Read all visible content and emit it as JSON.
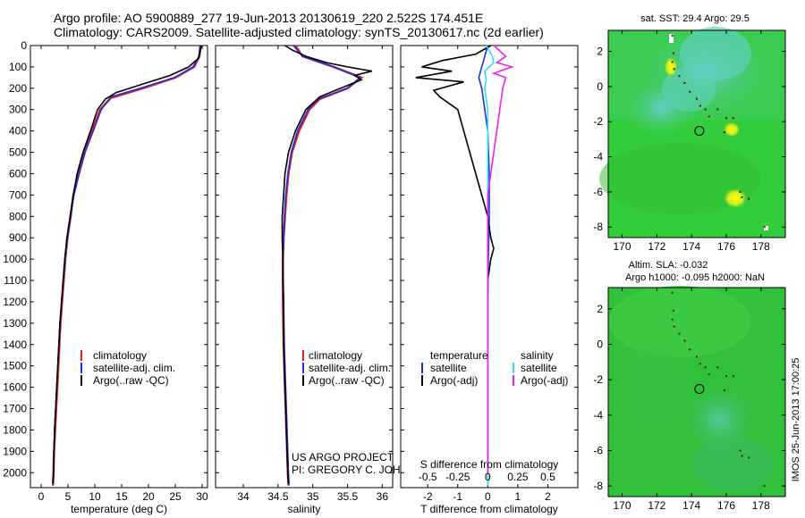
{
  "header": {
    "line1": "Argo profile: AO 5900889_277 19-Jun-2013 20130619_220 2.522S 174.451E",
    "line2": "Climatology: CARS2009. Satellite-adjusted climatology: synTS_20130617.nc (2d earlier)"
  },
  "colors": {
    "climatology": "#e02020",
    "satellite": "#2030e0",
    "argo": "#000000",
    "sat_salinity": "#30e0f0",
    "argo_salinity": "#ee22ee",
    "map_green": "#33cc33",
    "map_cyan": "#55cccc"
  },
  "depth_axis": {
    "ticks": [
      "0",
      "100",
      "200",
      "300",
      "400",
      "500",
      "600",
      "700",
      "800",
      "900",
      "1000",
      "1100",
      "1200",
      "1300",
      "1400",
      "1500",
      "1600",
      "1700",
      "1800",
      "1900",
      "2000"
    ],
    "ylim": [
      0,
      2070
    ]
  },
  "chart_data": [
    {
      "type": "line",
      "xlabel": "temperature (deg C)",
      "xticks": [
        "0",
        "5",
        "10",
        "15",
        "20",
        "25",
        "30"
      ],
      "xlim": [
        -2,
        31
      ],
      "legend": [
        "climatology",
        "satellite-adj. clim.",
        "Argo(..raw -QC)"
      ],
      "series": [
        {
          "name": "climatology",
          "color": "climatology",
          "points": [
            [
              29.7,
              0
            ],
            [
              29.5,
              50
            ],
            [
              28.5,
              100
            ],
            [
              25,
              150
            ],
            [
              19,
              200
            ],
            [
              13,
              245
            ],
            [
              11,
              300
            ],
            [
              9.5,
              400
            ],
            [
              8,
              500
            ],
            [
              7,
              600
            ],
            [
              6,
              700
            ],
            [
              5.5,
              800
            ],
            [
              4.9,
              900
            ],
            [
              4.5,
              1000
            ],
            [
              4.2,
              1100
            ],
            [
              3.9,
              1200
            ],
            [
              3.6,
              1300
            ],
            [
              3.4,
              1400
            ],
            [
              3.2,
              1500
            ],
            [
              3,
              1600
            ],
            [
              2.8,
              1700
            ],
            [
              2.6,
              1800
            ],
            [
              2.4,
              1900
            ],
            [
              2.3,
              2000
            ],
            [
              2.2,
              2060
            ]
          ]
        },
        {
          "name": "satellite-adj. clim.",
          "color": "satellite",
          "points": [
            [
              29.6,
              0
            ],
            [
              29.4,
              50
            ],
            [
              28.3,
              100
            ],
            [
              24.8,
              150
            ],
            [
              18.5,
              200
            ],
            [
              13,
              240
            ],
            [
              11.2,
              300
            ],
            [
              9.7,
              400
            ],
            [
              8.2,
              500
            ],
            [
              7.1,
              600
            ],
            [
              6.1,
              700
            ],
            [
              5.5,
              800
            ],
            [
              4.9,
              900
            ],
            [
              4.5,
              1000
            ],
            [
              4.1,
              1100
            ],
            [
              3.8,
              1200
            ],
            [
              3.5,
              1300
            ],
            [
              3.3,
              1400
            ],
            [
              3.1,
              1500
            ],
            [
              2.9,
              1600
            ],
            [
              2.7,
              1700
            ],
            [
              2.5,
              1800
            ],
            [
              2.4,
              1900
            ],
            [
              2.3,
              2000
            ],
            [
              2.2,
              2060
            ]
          ]
        },
        {
          "name": "Argo(..raw -QC)",
          "color": "argo",
          "points": [
            [
              29.8,
              0
            ],
            [
              29.7,
              20
            ],
            [
              29.3,
              60
            ],
            [
              27.5,
              100
            ],
            [
              24,
              140
            ],
            [
              19,
              180
            ],
            [
              14,
              220
            ],
            [
              12,
              250
            ],
            [
              10.5,
              300
            ],
            [
              9.2,
              400
            ],
            [
              7.8,
              500
            ],
            [
              6.7,
              600
            ],
            [
              6,
              700
            ],
            [
              5.4,
              800
            ],
            [
              4.8,
              900
            ],
            [
              4.4,
              1000
            ],
            [
              4.1,
              1100
            ],
            [
              3.8,
              1200
            ],
            [
              3.5,
              1300
            ],
            [
              3.3,
              1400
            ],
            [
              3.1,
              1500
            ],
            [
              2.9,
              1600
            ],
            [
              2.7,
              1700
            ],
            [
              2.5,
              1800
            ],
            [
              2.4,
              1900
            ],
            [
              2.3,
              2000
            ],
            [
              2.2,
              2050
            ]
          ]
        }
      ]
    },
    {
      "type": "line",
      "xlabel": "salinity",
      "xticks": [
        "34",
        "34.5",
        "35",
        "35.5",
        "36"
      ],
      "xlim": [
        33.6,
        36.15
      ],
      "legend": [
        "climatology",
        "satellite-adj. clim.",
        "Argo(..raw -QC)"
      ],
      "annotation": [
        "US ARGO PROJECT",
        "PI: GREGORY C. JOHNSON"
      ],
      "series": [
        {
          "name": "climatology",
          "color": "climatology",
          "points": [
            [
              34.75,
              0
            ],
            [
              34.85,
              50
            ],
            [
              35.3,
              100
            ],
            [
              35.7,
              150
            ],
            [
              35.5,
              200
            ],
            [
              35.1,
              250
            ],
            [
              34.95,
              300
            ],
            [
              34.8,
              400
            ],
            [
              34.7,
              500
            ],
            [
              34.65,
              600
            ],
            [
              34.62,
              700
            ],
            [
              34.6,
              800
            ],
            [
              34.58,
              900
            ],
            [
              34.57,
              1000
            ],
            [
              34.57,
              1200
            ],
            [
              34.58,
              1400
            ],
            [
              34.6,
              1600
            ],
            [
              34.62,
              1800
            ],
            [
              34.64,
              2000
            ],
            [
              34.65,
              2060
            ]
          ]
        },
        {
          "name": "satellite-adj. clim.",
          "color": "satellite",
          "points": [
            [
              34.72,
              0
            ],
            [
              34.85,
              50
            ],
            [
              35.3,
              100
            ],
            [
              35.68,
              150
            ],
            [
              35.5,
              200
            ],
            [
              35.08,
              250
            ],
            [
              34.93,
              300
            ],
            [
              34.78,
              400
            ],
            [
              34.69,
              500
            ],
            [
              34.64,
              600
            ],
            [
              34.61,
              700
            ],
            [
              34.59,
              800
            ],
            [
              34.58,
              900
            ],
            [
              34.57,
              1000
            ],
            [
              34.58,
              1200
            ],
            [
              34.59,
              1400
            ],
            [
              34.61,
              1600
            ],
            [
              34.63,
              1800
            ],
            [
              34.65,
              2000
            ],
            [
              34.66,
              2060
            ]
          ]
        },
        {
          "name": "Argo(..raw -QC)",
          "color": "argo",
          "points": [
            [
              34.6,
              0
            ],
            [
              34.7,
              20
            ],
            [
              34.9,
              50
            ],
            [
              35.2,
              80
            ],
            [
              35.5,
              100
            ],
            [
              35.85,
              120
            ],
            [
              35.6,
              140
            ],
            [
              35.7,
              160
            ],
            [
              35.4,
              200
            ],
            [
              35.1,
              240
            ],
            [
              34.9,
              300
            ],
            [
              34.75,
              400
            ],
            [
              34.65,
              500
            ],
            [
              34.6,
              600
            ],
            [
              34.58,
              700
            ],
            [
              34.56,
              800
            ],
            [
              34.56,
              900
            ],
            [
              34.57,
              1000
            ],
            [
              34.57,
              1100
            ],
            [
              34.58,
              1200
            ],
            [
              34.58,
              1400
            ],
            [
              34.6,
              1600
            ],
            [
              34.62,
              1800
            ],
            [
              34.64,
              2000
            ],
            [
              34.65,
              2050
            ]
          ]
        }
      ]
    },
    {
      "type": "line",
      "xlabel": "T difference from climatology",
      "xlabel_top": "S difference from climatology",
      "xticks": [
        "-2",
        "-1",
        "0",
        "1",
        "2"
      ],
      "xticks_top": [
        "-0.5",
        "-0.25",
        "0",
        "0.25",
        "0.5"
      ],
      "xlim": [
        -2.9,
        3.0
      ],
      "legend_headers": [
        "temperature",
        "salinity"
      ],
      "legend": [
        "satellite",
        "Argo(-adj)",
        "satellite",
        "Argo(-adj)"
      ],
      "series": [
        {
          "name": "temperature satellite",
          "color": "satellite",
          "points": [
            [
              0,
              0
            ],
            [
              -0.1,
              50
            ],
            [
              -0.2,
              100
            ],
            [
              -0.3,
              150
            ],
            [
              -0.2,
              200
            ],
            [
              -0.1,
              300
            ],
            [
              0,
              400
            ],
            [
              0.05,
              600
            ],
            [
              0.05,
              800
            ],
            [
              0.02,
              1000
            ],
            [
              0,
              1200
            ],
            [
              0,
              1600
            ],
            [
              0,
              2060
            ]
          ]
        },
        {
          "name": "temperature Argo(-adj)",
          "color": "argo",
          "points": [
            [
              0.1,
              0
            ],
            [
              -0.4,
              40
            ],
            [
              -1.5,
              70
            ],
            [
              -2.2,
              100
            ],
            [
              -1.2,
              120
            ],
            [
              -2.4,
              150
            ],
            [
              -0.8,
              170
            ],
            [
              -1.3,
              190
            ],
            [
              -1.8,
              210
            ],
            [
              -1.6,
              240
            ],
            [
              -1.0,
              300
            ],
            [
              -0.8,
              400
            ],
            [
              -0.6,
              500
            ],
            [
              -0.4,
              600
            ],
            [
              -0.2,
              700
            ],
            [
              0,
              800
            ],
            [
              0.1,
              900
            ],
            [
              0.2,
              950
            ],
            [
              0.1,
              1000
            ],
            [
              0,
              1100
            ],
            [
              0,
              1300
            ],
            [
              0,
              1600
            ],
            [
              0,
              1900
            ],
            [
              0,
              2050
            ]
          ]
        },
        {
          "name": "salinity satellite",
          "color": "sat_salinity",
          "points": [
            [
              -0.05,
              0
            ],
            [
              0.15,
              50
            ],
            [
              0.2,
              80
            ],
            [
              -0.1,
              120
            ],
            [
              -0.05,
              160
            ],
            [
              -0.1,
              200
            ],
            [
              0,
              300
            ],
            [
              0,
              500
            ],
            [
              0,
              800
            ],
            [
              0,
              1200
            ],
            [
              0,
              1600
            ],
            [
              0,
              2060
            ]
          ]
        },
        {
          "name": "salinity Argo(-adj)",
          "color": "argo_salinity",
          "points": [
            [
              0.2,
              0
            ],
            [
              0.6,
              50
            ],
            [
              0.3,
              80
            ],
            [
              0.8,
              100
            ],
            [
              0.2,
              130
            ],
            [
              0.6,
              150
            ],
            [
              0.5,
              200
            ],
            [
              0.4,
              300
            ],
            [
              0.3,
              400
            ],
            [
              0.2,
              500
            ],
            [
              0.1,
              600
            ],
            [
              0,
              700
            ],
            [
              0,
              1000
            ],
            [
              0,
              1400
            ],
            [
              0,
              2000
            ]
          ]
        }
      ]
    },
    {
      "type": "heatmap",
      "title": "sat. SST: 29.4 Argo: 29.5",
      "xticks": [
        "170",
        "172",
        "174",
        "176",
        "178"
      ],
      "yticks": [
        "2",
        "0",
        "-2",
        "-4",
        "-6",
        "-8"
      ],
      "xlim": [
        169.2,
        179.4
      ],
      "ylim": [
        -8.6,
        3.2
      ],
      "float_position": [
        174.451,
        -2.522
      ]
    },
    {
      "type": "heatmap",
      "title_lines": [
        "Altim. SLA: -0.032",
        "Argo h1000: -0.095 h2000: NaN"
      ],
      "xticks": [
        "170",
        "172",
        "174",
        "176",
        "178"
      ],
      "yticks": [
        "2",
        "0",
        "-2",
        "-4",
        "-6",
        "-8"
      ],
      "xlim": [
        169.2,
        179.4
      ],
      "ylim": [
        -8.6,
        3.2
      ],
      "float_position": [
        174.451,
        -2.522
      ]
    }
  ],
  "footer_vertical": "IMOS 25-Jun-2013 17:00:25"
}
